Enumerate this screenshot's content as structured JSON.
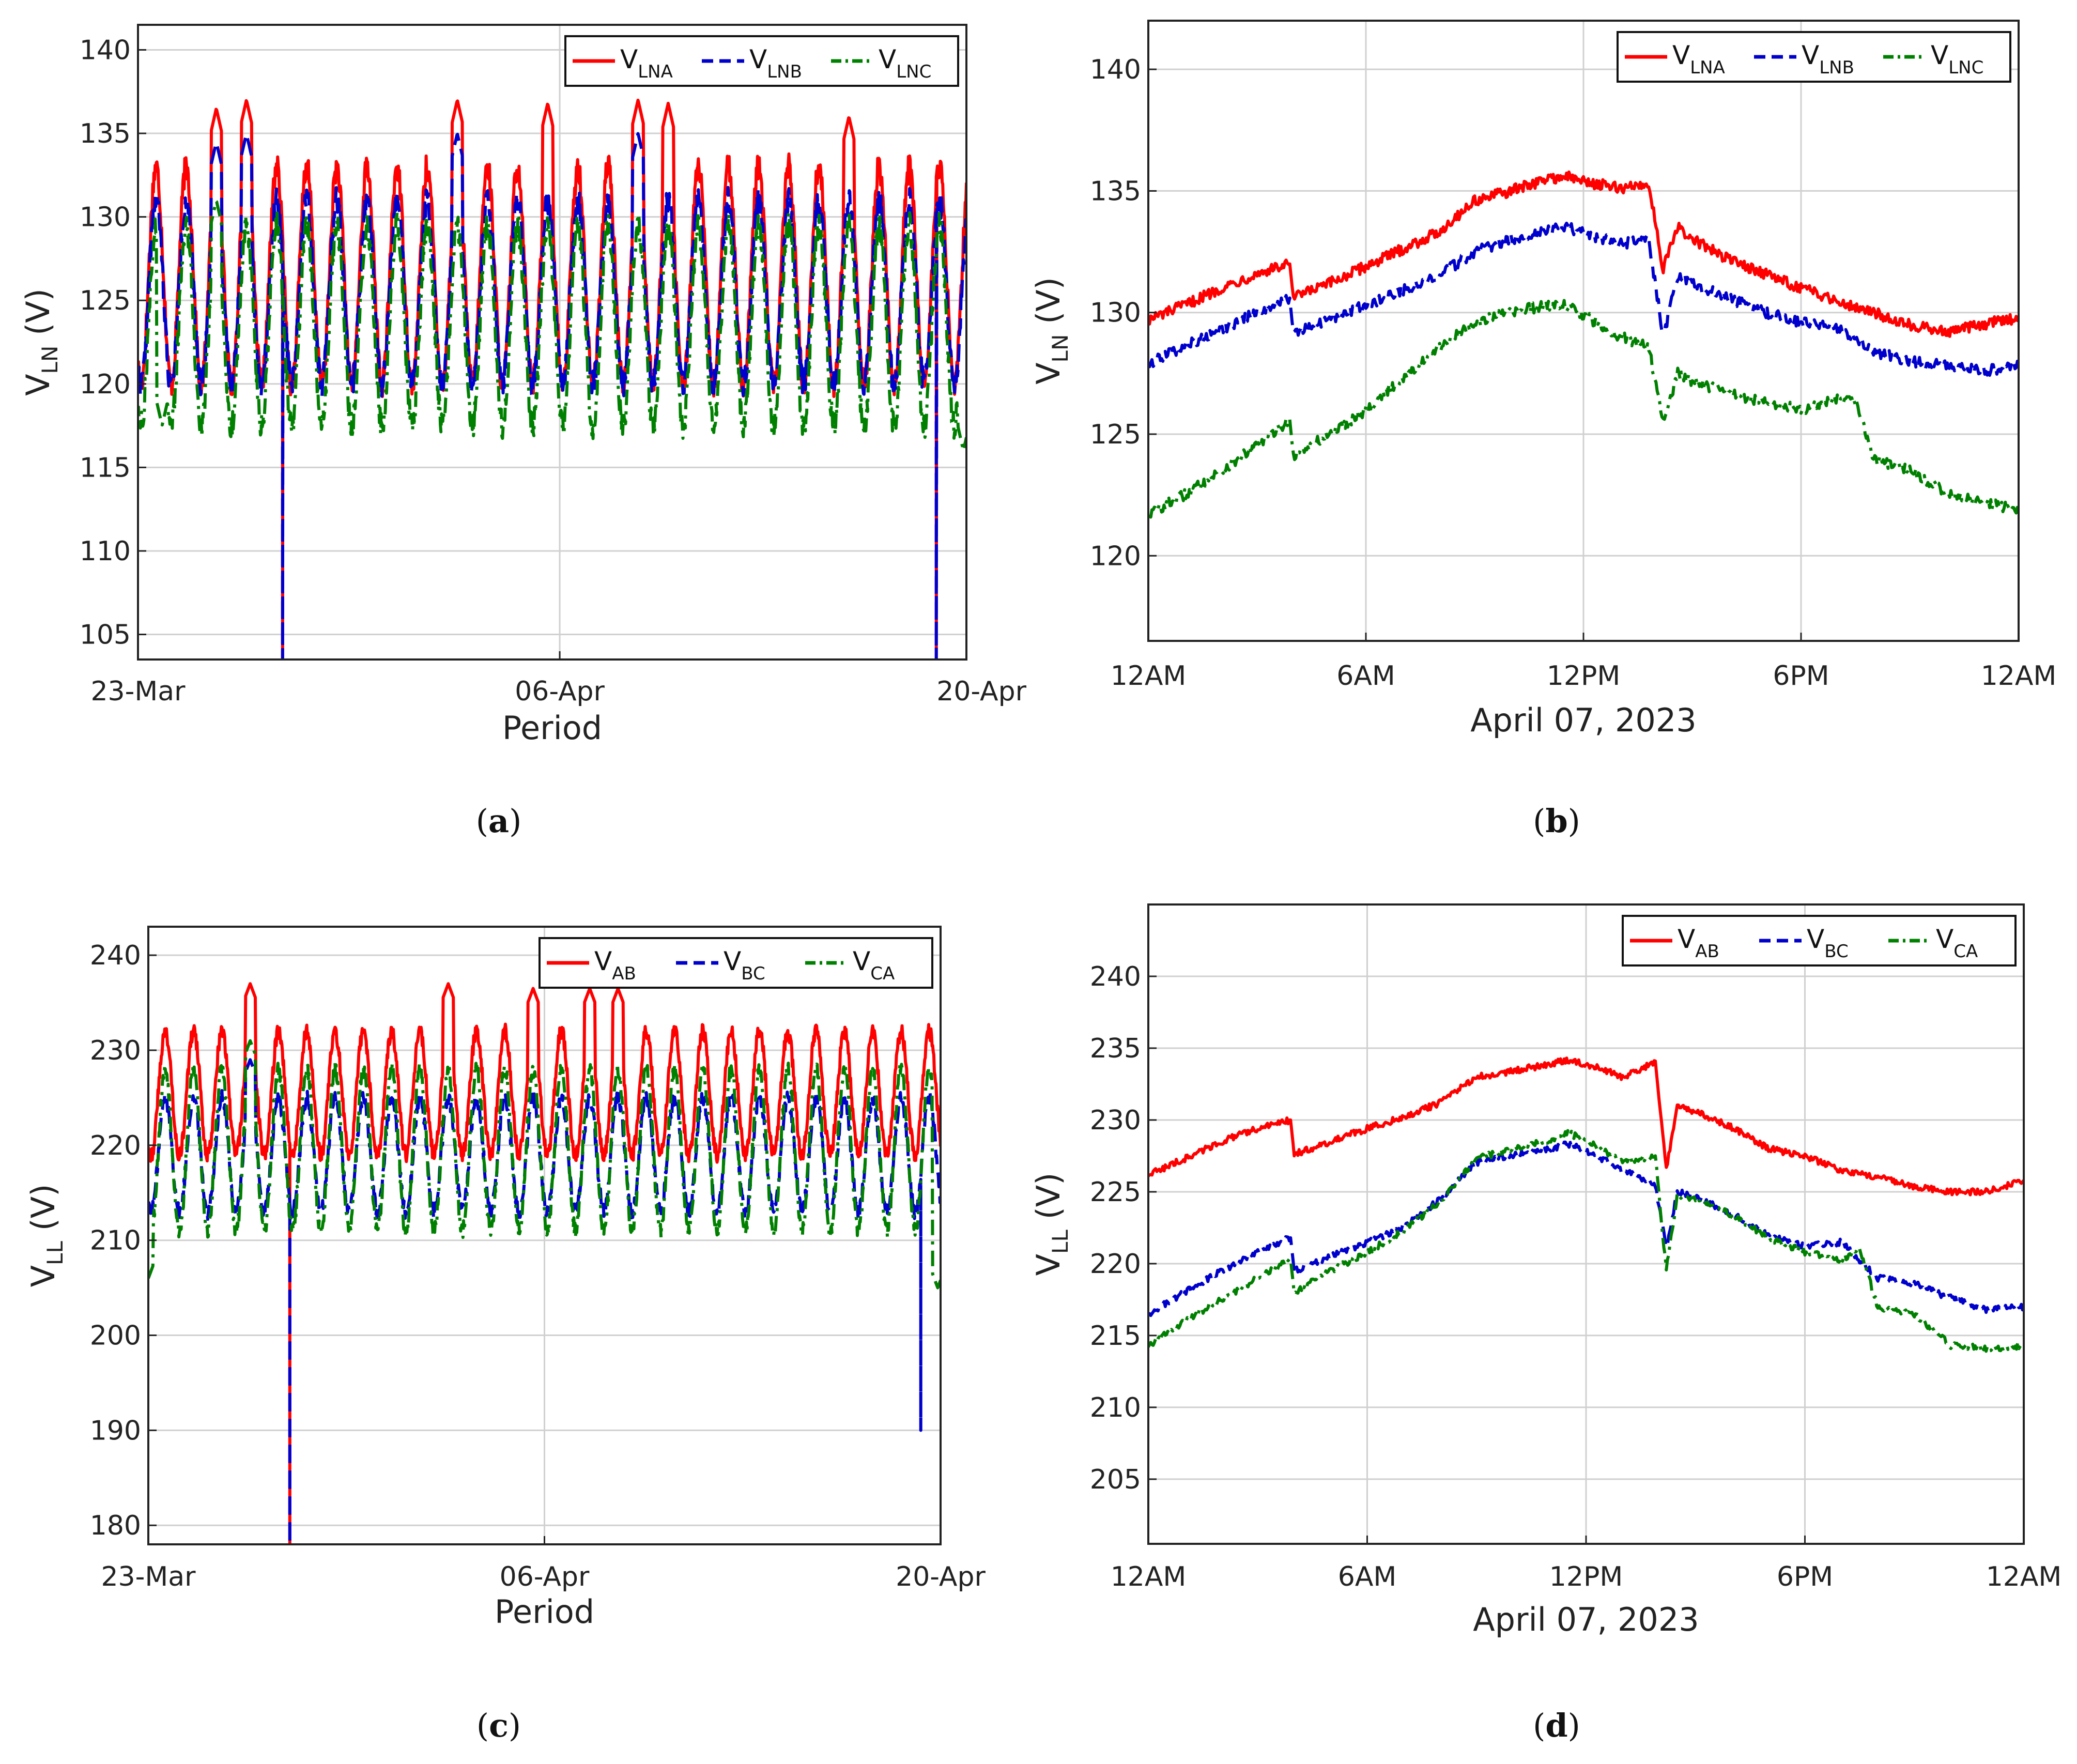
{
  "colors": {
    "phase_a": "#ff0000",
    "phase_b": "#0000cc",
    "phase_c": "#008000",
    "grid": "#d0d0d0",
    "frame": "#222222"
  },
  "chart_data": [
    {
      "panel_label": "a",
      "type": "line",
      "xlabel": "Period",
      "ylabel_main": "V",
      "ylabel_sub": "LN",
      "ylabel_unit": " (V)",
      "ylim": [
        103.5,
        141.5
      ],
      "yticks": [
        105,
        110,
        115,
        120,
        125,
        130,
        135,
        140
      ],
      "xlim": [
        0,
        27.5
      ],
      "x_ticks": [
        {
          "x": 0,
          "label": "23-Mar"
        },
        {
          "x": 14,
          "label": "06-Apr"
        },
        {
          "x": 28,
          "label": "20-Apr"
        }
      ],
      "grid": true,
      "legend_position": "top-right",
      "legend_items": [
        {
          "main": "V",
          "sub": "LNA",
          "style": "solid",
          "color": "phase_a"
        },
        {
          "main": "V",
          "sub": "LNB",
          "style": "dashed",
          "color": "phase_b"
        },
        {
          "main": "V",
          "sub": "LNC",
          "style": "dashdot",
          "color": "phase_c"
        }
      ],
      "series": [
        {
          "name": "VLNA",
          "color": "phase_a",
          "style": "solid",
          "base": 126.5,
          "amp": 6.5,
          "period": 1,
          "drop_at": [
            4.8,
            26.5
          ],
          "drop_to": 103.5,
          "peaks": [
            [
              2.6,
              136.5
            ],
            [
              3.6,
              137.0
            ],
            [
              10.6,
              137.0
            ],
            [
              13.6,
              136.8
            ],
            [
              16.6,
              137.0
            ],
            [
              17.6,
              136.8
            ],
            [
              23.6,
              136.0
            ]
          ]
        },
        {
          "name": "VLNB",
          "color": "phase_b",
          "style": "dashed",
          "base": 125.5,
          "amp": 5.5,
          "period": 1,
          "drop_at": [
            4.8,
            26.5
          ],
          "drop_to": 103.5,
          "peaks": [
            [
              2.6,
              134.5
            ],
            [
              3.6,
              135.0
            ],
            [
              10.6,
              135.0
            ],
            [
              16.6,
              135.0
            ]
          ]
        },
        {
          "name": "VLNC",
          "color": "phase_c",
          "style": "dashdot",
          "base": 123.5,
          "amp": 6.0,
          "period": 1,
          "drop_at": [],
          "drop_to": 0,
          "peaks": [
            [
              2.6,
              131.0
            ]
          ],
          "troughs": [
            [
              0.8,
              117.5
            ],
            [
              27.4,
              116.0
            ]
          ]
        }
      ]
    },
    {
      "panel_label": "b",
      "type": "line",
      "xlabel": "April 07, 2023",
      "ylabel_main": "V",
      "ylabel_sub": "LN",
      "ylabel_unit": " (V)",
      "ylim": [
        116.5,
        142
      ],
      "yticks": [
        120,
        125,
        130,
        135,
        140
      ],
      "xlim": [
        0,
        24
      ],
      "x_ticks": [
        {
          "x": 0,
          "label": "12AM"
        },
        {
          "x": 6,
          "label": "6AM"
        },
        {
          "x": 12,
          "label": "12PM"
        },
        {
          "x": 18,
          "label": "6PM"
        },
        {
          "x": 24,
          "label": "12AM"
        }
      ],
      "grid": true,
      "legend_position": "top-right",
      "legend_items": [
        {
          "main": "V",
          "sub": "LNA",
          "style": "solid",
          "color": "phase_a"
        },
        {
          "main": "V",
          "sub": "LNB",
          "style": "dashed",
          "color": "phase_b"
        },
        {
          "main": "V",
          "sub": "LNC",
          "style": "dashdot",
          "color": "phase_c"
        }
      ],
      "series": [
        {
          "name": "VLNA",
          "color": "phase_a",
          "style": "solid",
          "x": [
            0,
            1,
            2,
            3,
            3.9,
            4.0,
            5,
            6,
            7,
            8,
            9,
            10,
            11,
            11.5,
            12,
            13,
            13.8,
            14.2,
            14.6,
            15,
            16,
            17,
            18,
            19,
            20,
            21,
            22,
            23,
            24
          ],
          "y": [
            129.7,
            130.3,
            131.0,
            131.6,
            132.0,
            130.6,
            131.2,
            131.9,
            132.6,
            133.3,
            134.6,
            135.0,
            135.5,
            135.6,
            135.4,
            135.1,
            135.3,
            131.8,
            133.5,
            133.0,
            132.2,
            131.6,
            131.0,
            130.5,
            130.0,
            129.5,
            129.2,
            129.5,
            129.8
          ]
        },
        {
          "name": "VLNB",
          "color": "phase_b",
          "style": "dashed",
          "x": [
            0,
            1,
            2,
            3,
            3.9,
            4.0,
            5,
            6,
            7,
            8,
            9,
            10,
            11,
            11.5,
            12,
            13,
            13.8,
            14.2,
            14.6,
            15,
            16,
            17,
            18,
            19,
            20,
            21,
            22,
            23,
            24
          ],
          "y": [
            127.9,
            128.6,
            129.3,
            130.0,
            130.6,
            129.1,
            129.7,
            130.3,
            130.9,
            131.5,
            132.5,
            133.0,
            133.4,
            133.5,
            133.3,
            132.8,
            133.0,
            129.0,
            131.5,
            131.2,
            130.6,
            130.0,
            129.6,
            129.4,
            128.4,
            128.0,
            127.8,
            127.6,
            127.8
          ]
        },
        {
          "name": "VLNC",
          "color": "phase_c",
          "style": "dashdot",
          "x": [
            0,
            1,
            2,
            3,
            3.9,
            4.0,
            5,
            6,
            7,
            8,
            9,
            10,
            11,
            11.5,
            12,
            13,
            13.8,
            14.2,
            14.6,
            15,
            16,
            17,
            18,
            19,
            19.5,
            20,
            21,
            22,
            23,
            24
          ],
          "y": [
            121.7,
            122.5,
            123.5,
            124.5,
            125.6,
            124.1,
            125.0,
            126.0,
            127.3,
            128.5,
            129.6,
            130.0,
            130.3,
            130.3,
            129.9,
            129.0,
            128.6,
            125.5,
            127.5,
            127.2,
            126.7,
            126.3,
            126.0,
            126.5,
            126.4,
            124.0,
            123.5,
            122.6,
            122.2,
            121.9
          ]
        }
      ]
    },
    {
      "panel_label": "c",
      "type": "line",
      "xlabel": "Period",
      "ylabel_main": "V",
      "ylabel_sub": "LL",
      "ylabel_unit": " (V)",
      "ylim": [
        178,
        243
      ],
      "yticks": [
        180,
        190,
        200,
        210,
        220,
        230,
        240
      ],
      "xlim": [
        0,
        28
      ],
      "x_ticks": [
        {
          "x": 0,
          "label": "23-Mar"
        },
        {
          "x": 14,
          "label": "06-Apr"
        },
        {
          "x": 28,
          "label": "20-Apr"
        }
      ],
      "grid": true,
      "legend_position": "top-right",
      "legend_items": [
        {
          "main": "V",
          "sub": "AB",
          "style": "solid",
          "color": "phase_a"
        },
        {
          "main": "V",
          "sub": "BC",
          "style": "dashed",
          "color": "phase_b"
        },
        {
          "main": "V",
          "sub": "CA",
          "style": "dashdot",
          "color": "phase_c"
        }
      ],
      "series": [
        {
          "name": "VAB",
          "color": "phase_a",
          "style": "solid",
          "base": 225.5,
          "amp": 6.5,
          "period": 1,
          "drop_at": [
            5.0
          ],
          "drop_to": 178,
          "peaks": [
            [
              3.6,
              237.0
            ],
            [
              10.6,
              237.0
            ],
            [
              13.6,
              236.5
            ],
            [
              15.6,
              236.5
            ],
            [
              16.6,
              236.5
            ]
          ]
        },
        {
          "name": "VBC",
          "color": "phase_b",
          "style": "dashed",
          "base": 219.0,
          "amp": 6.0,
          "period": 1,
          "drop_at": [
            5.0
          ],
          "drop_to": 178,
          "drop2_at": [
            27.3
          ],
          "drop2_to": 190,
          "peaks": [
            [
              3.6,
              229.0
            ]
          ]
        },
        {
          "name": "VCA",
          "color": "phase_c",
          "style": "dashdot",
          "base": 219.5,
          "amp": 8.5,
          "period": 1,
          "drop_at": [],
          "drop_to": 0,
          "peaks": [
            [
              3.6,
              231.0
            ]
          ],
          "troughs": [
            [
              0.0,
              206.0
            ],
            [
              27.9,
              205.0
            ]
          ]
        }
      ]
    },
    {
      "panel_label": "d",
      "type": "line",
      "xlabel": "April 07, 2023",
      "ylabel_main": "V",
      "ylabel_sub": "LL",
      "ylabel_unit": " (V)",
      "ylim": [
        200.5,
        245
      ],
      "yticks": [
        205,
        210,
        215,
        220,
        225,
        230,
        235,
        240
      ],
      "xlim": [
        0,
        24
      ],
      "x_ticks": [
        {
          "x": 0,
          "label": "12AM"
        },
        {
          "x": 6,
          "label": "6AM"
        },
        {
          "x": 12,
          "label": "12PM"
        },
        {
          "x": 18,
          "label": "6PM"
        },
        {
          "x": 24,
          "label": "12AM"
        }
      ],
      "grid": true,
      "legend_position": "top-right",
      "legend_items": [
        {
          "main": "V",
          "sub": "AB",
          "style": "solid",
          "color": "phase_a"
        },
        {
          "main": "V",
          "sub": "BC",
          "style": "dashed",
          "color": "phase_b"
        },
        {
          "main": "V",
          "sub": "CA",
          "style": "dashdot",
          "color": "phase_c"
        }
      ],
      "series": [
        {
          "name": "VAB",
          "color": "phase_a",
          "style": "solid",
          "x": [
            0,
            1,
            2,
            3,
            3.9,
            4.0,
            5,
            6,
            7,
            8,
            9,
            10,
            11,
            11.5,
            12,
            13,
            13.9,
            14.2,
            14.5,
            15,
            16,
            17,
            18,
            19,
            20,
            21,
            22,
            23,
            24
          ],
          "y": [
            226.2,
            227.3,
            228.5,
            229.4,
            230.0,
            227.6,
            228.5,
            229.4,
            230.2,
            231.2,
            233.0,
            233.4,
            233.9,
            234.2,
            233.9,
            233.0,
            234.0,
            226.5,
            231.0,
            230.6,
            229.5,
            228.0,
            227.5,
            226.5,
            226.0,
            225.4,
            225.0,
            225.0,
            225.8
          ]
        },
        {
          "name": "VBC",
          "color": "phase_b",
          "style": "dashed",
          "x": [
            0,
            1,
            2,
            3,
            3.9,
            4.0,
            5,
            6,
            7,
            8,
            9,
            10,
            11,
            11.5,
            12,
            13,
            13.9,
            14.2,
            14.5,
            15,
            16,
            17,
            18,
            19,
            20,
            21,
            22,
            23,
            24
          ],
          "y": [
            216.5,
            218.0,
            219.5,
            220.8,
            221.8,
            219.5,
            220.5,
            221.5,
            222.5,
            224.5,
            227.0,
            227.6,
            228.0,
            228.3,
            227.9,
            226.5,
            225.5,
            221.0,
            225.0,
            224.6,
            223.5,
            222.0,
            221.2,
            221.5,
            219.0,
            218.6,
            217.6,
            216.8,
            217.0
          ]
        },
        {
          "name": "VCA",
          "color": "phase_c",
          "style": "dashdot",
          "x": [
            0,
            1,
            2,
            3,
            3.9,
            4.0,
            5,
            6,
            7,
            8,
            9,
            10,
            11,
            11.5,
            12,
            13,
            13.9,
            14.2,
            14.5,
            15,
            16,
            17,
            18,
            19,
            19.5,
            20,
            21,
            22,
            23,
            24
          ],
          "y": [
            214.3,
            216.0,
            217.5,
            219.0,
            220.3,
            218.0,
            219.5,
            220.8,
            222.3,
            224.3,
            227.3,
            228.0,
            228.6,
            229.1,
            228.6,
            227.0,
            227.5,
            219.5,
            224.8,
            224.5,
            223.4,
            221.8,
            220.8,
            220.3,
            221.0,
            217.0,
            216.5,
            214.3,
            214.1,
            214.3
          ]
        }
      ]
    }
  ]
}
